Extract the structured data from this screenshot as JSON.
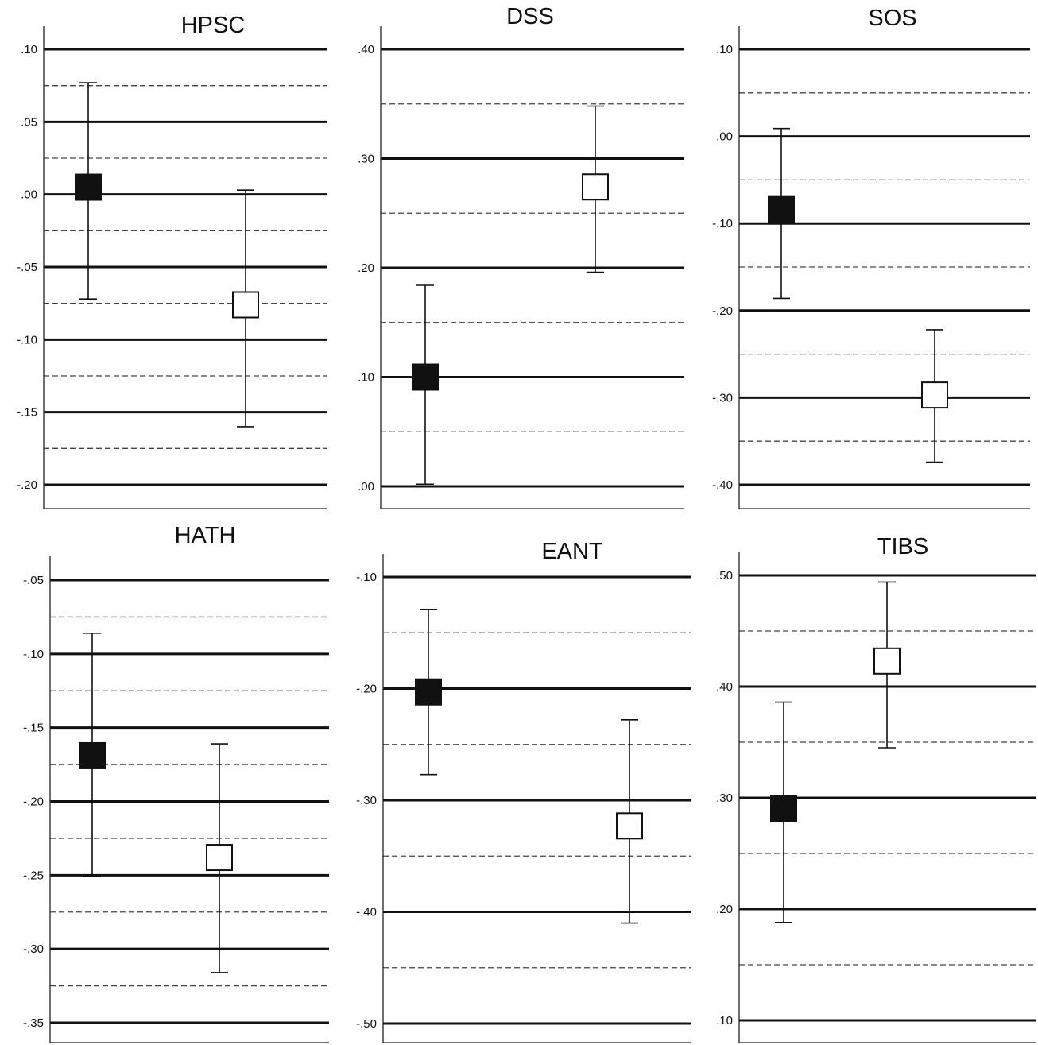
{
  "colors": {
    "filled_marker": "#111111",
    "open_marker_fill": "#ffffff",
    "grid_line": "#111111"
  },
  "chart_data": [
    {
      "type": "scatter",
      "title": "HPSC",
      "ylim": [
        -0.2,
        0.1
      ],
      "y_ticks": [
        0.1,
        0.05,
        0.0,
        -0.05,
        -0.1,
        -0.15,
        -0.2
      ],
      "y_tick_labels": [
        ".10",
        ".05",
        ".00",
        "-.05",
        "-.10",
        "-.15",
        "-.20"
      ],
      "dashed_midlines": true,
      "series": [
        {
          "marker": "filled-square",
          "x": 1,
          "mean": 0.005,
          "lower": -0.072,
          "upper": 0.077
        },
        {
          "marker": "open-square",
          "x": 2,
          "mean": -0.076,
          "lower": -0.16,
          "upper": 0.003
        }
      ]
    },
    {
      "type": "scatter",
      "title": "DSS",
      "ylim": [
        0.0,
        0.4
      ],
      "y_ticks": [
        0.4,
        0.3,
        0.2,
        0.1,
        0.0
      ],
      "y_tick_labels": [
        ".40",
        ".30",
        ".20",
        ".10",
        ".00"
      ],
      "dashed_midlines": true,
      "series": [
        {
          "marker": "filled-square",
          "x": 1,
          "mean": 0.1,
          "lower": 0.002,
          "upper": 0.184
        },
        {
          "marker": "open-square",
          "x": 2,
          "mean": 0.274,
          "lower": 0.196,
          "upper": 0.348
        }
      ]
    },
    {
      "type": "scatter",
      "title": "SOS",
      "ylim": [
        -0.4,
        0.1
      ],
      "y_ticks": [
        0.1,
        0.0,
        -0.1,
        -0.2,
        -0.3,
        -0.4
      ],
      "y_tick_labels": [
        ".10",
        ".00",
        "-.10",
        "-.20",
        "-.30",
        "-.40"
      ],
      "dashed_midlines": true,
      "series": [
        {
          "marker": "filled-square",
          "x": 1,
          "mean": -0.084,
          "lower": -0.186,
          "upper": 0.009
        },
        {
          "marker": "open-square",
          "x": 2,
          "mean": -0.297,
          "lower": -0.374,
          "upper": -0.222
        }
      ]
    },
    {
      "type": "scatter",
      "title": "HATH",
      "ylim": [
        -0.35,
        -0.05
      ],
      "y_ticks": [
        -0.05,
        -0.1,
        -0.15,
        -0.2,
        -0.25,
        -0.3,
        -0.35
      ],
      "y_tick_labels": [
        "-.05",
        "-.10",
        "-.15",
        "-.20",
        "-.25",
        "-.30",
        "-.35"
      ],
      "dashed_midlines": true,
      "series": [
        {
          "marker": "filled-square",
          "x": 1,
          "mean": -0.169,
          "lower": -0.251,
          "upper": -0.086
        },
        {
          "marker": "open-square",
          "x": 2,
          "mean": -0.238,
          "lower": -0.316,
          "upper": -0.161
        }
      ]
    },
    {
      "type": "scatter",
      "title": "EANT",
      "ylim": [
        -0.5,
        -0.1
      ],
      "y_ticks": [
        -0.1,
        -0.2,
        -0.3,
        -0.4,
        -0.5
      ],
      "y_tick_labels": [
        "-.10",
        "-.20",
        "-.30",
        "-.40",
        "-.50"
      ],
      "dashed_midlines": true,
      "series": [
        {
          "marker": "filled-square",
          "x": 1,
          "mean": -0.203,
          "lower": -0.277,
          "upper": -0.129
        },
        {
          "marker": "open-square",
          "x": 2,
          "mean": -0.323,
          "lower": -0.41,
          "upper": -0.228
        }
      ]
    },
    {
      "type": "scatter",
      "title": "TIBS",
      "ylim": [
        0.1,
        0.5
      ],
      "y_ticks": [
        0.5,
        0.4,
        0.3,
        0.2,
        0.1
      ],
      "y_tick_labels": [
        ".50",
        ".40",
        ".30",
        ".20",
        ".10"
      ],
      "dashed_midlines": true,
      "series": [
        {
          "marker": "filled-square",
          "x": 1,
          "mean": 0.29,
          "lower": 0.188,
          "upper": 0.386
        },
        {
          "marker": "open-square",
          "x": 2,
          "mean": 0.423,
          "lower": 0.345,
          "upper": 0.494
        }
      ]
    }
  ]
}
